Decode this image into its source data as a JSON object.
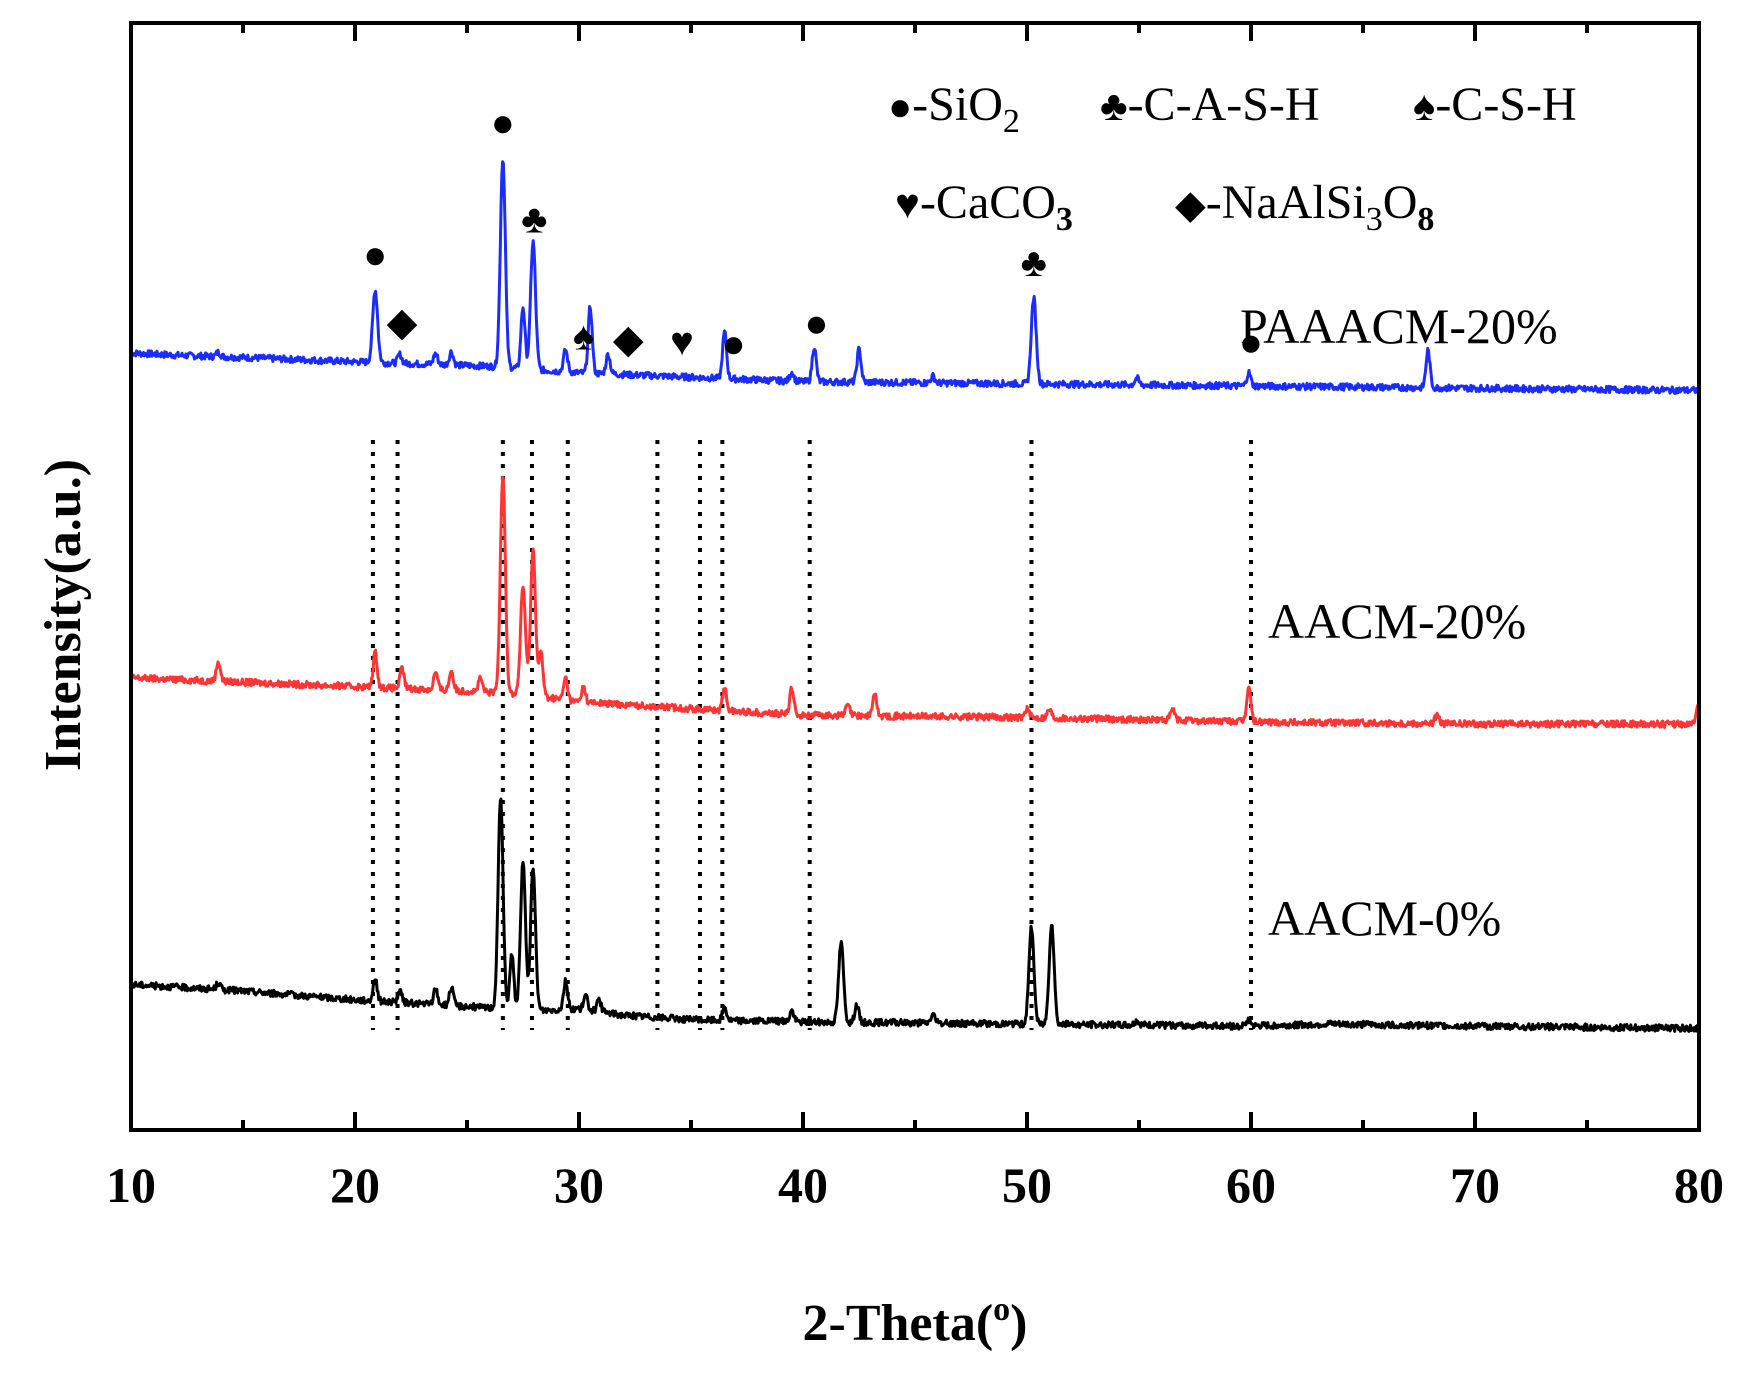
{
  "chart_data": {
    "type": "line",
    "title": "",
    "xlabel": "2-Theta(",
    "xlabel_sup": "o",
    "xlabel_end": ")",
    "ylabel": "Intensity(a.u.)",
    "xlim": [
      10,
      80
    ],
    "xticks": [
      10,
      20,
      30,
      40,
      50,
      60,
      70,
      80
    ],
    "xtick_labels": [
      "10",
      "20",
      "30",
      "40",
      "50",
      "60",
      "70",
      "80"
    ],
    "grid": false,
    "series": [
      {
        "name": "PAAACM-20%",
        "color": "#1a2cff",
        "baseline": [
          [
            10,
            0.35
          ],
          [
            12,
            0.34
          ],
          [
            15,
            0.33
          ],
          [
            20,
            0.31
          ],
          [
            26,
            0.29
          ],
          [
            30,
            0.26
          ],
          [
            35,
            0.24
          ],
          [
            40,
            0.22
          ],
          [
            50,
            0.21
          ],
          [
            60,
            0.2
          ],
          [
            70,
            0.19
          ],
          [
            80,
            0.18
          ]
        ],
        "peaks": [
          [
            13.9,
            0.02
          ],
          [
            20.9,
            0.33
          ],
          [
            22.0,
            0.04
          ],
          [
            23.6,
            0.05
          ],
          [
            24.3,
            0.06
          ],
          [
            26.6,
            0.95
          ],
          [
            27.5,
            0.28
          ],
          [
            27.95,
            0.58
          ],
          [
            29.4,
            0.1
          ],
          [
            30.5,
            0.3
          ],
          [
            31.3,
            0.09
          ],
          [
            36.5,
            0.21
          ],
          [
            39.5,
            0.04
          ],
          [
            40.5,
            0.16
          ],
          [
            42.5,
            0.15
          ],
          [
            45.8,
            0.03
          ],
          [
            50.3,
            0.39
          ],
          [
            54.9,
            0.03
          ],
          [
            59.9,
            0.06
          ],
          [
            67.9,
            0.17
          ]
        ]
      },
      {
        "name": "AACM-20%",
        "color": "#ff3535",
        "baseline": [
          [
            10,
            0.26
          ],
          [
            15,
            0.24
          ],
          [
            20,
            0.22
          ],
          [
            25,
            0.2
          ],
          [
            28,
            0.18
          ],
          [
            30,
            0.15
          ],
          [
            35,
            0.12
          ],
          [
            40,
            0.09
          ],
          [
            50,
            0.08
          ],
          [
            60,
            0.06
          ],
          [
            70,
            0.05
          ],
          [
            80,
            0.05
          ]
        ],
        "peaks": [
          [
            13.9,
            0.09
          ],
          [
            20.9,
            0.16
          ],
          [
            22.1,
            0.09
          ],
          [
            23.6,
            0.08
          ],
          [
            24.3,
            0.09
          ],
          [
            25.6,
            0.06
          ],
          [
            26.6,
            1.0
          ],
          [
            27.5,
            0.49
          ],
          [
            27.95,
            0.66
          ],
          [
            28.3,
            0.2
          ],
          [
            29.4,
            0.1
          ],
          [
            30.2,
            0.07
          ],
          [
            36.5,
            0.1
          ],
          [
            39.5,
            0.12
          ],
          [
            42.0,
            0.05
          ],
          [
            43.2,
            0.1
          ],
          [
            50.0,
            0.04
          ],
          [
            51.0,
            0.04
          ],
          [
            56.5,
            0.05
          ],
          [
            59.9,
            0.16
          ],
          [
            68.3,
            0.04
          ],
          [
            80.0,
            0.1
          ]
        ]
      },
      {
        "name": "AACM-0%",
        "color": "#000000",
        "baseline": [
          [
            10,
            0.23
          ],
          [
            15,
            0.2
          ],
          [
            20,
            0.16
          ],
          [
            25,
            0.13
          ],
          [
            28,
            0.11
          ],
          [
            30,
            0.12
          ],
          [
            32,
            0.09
          ],
          [
            35,
            0.07
          ],
          [
            40,
            0.06
          ],
          [
            50,
            0.05
          ],
          [
            60,
            0.04
          ],
          [
            63.5,
            0.05
          ],
          [
            70,
            0.04
          ],
          [
            80,
            0.03
          ]
        ],
        "peaks": [
          [
            13.9,
            0.03
          ],
          [
            20.9,
            0.1
          ],
          [
            22.0,
            0.05
          ],
          [
            23.6,
            0.07
          ],
          [
            24.3,
            0.08
          ],
          [
            26.5,
            0.96
          ],
          [
            27.0,
            0.25
          ],
          [
            27.5,
            0.67
          ],
          [
            27.95,
            0.64
          ],
          [
            29.4,
            0.13
          ],
          [
            30.3,
            0.06
          ],
          [
            30.9,
            0.05
          ],
          [
            36.5,
            0.06
          ],
          [
            39.5,
            0.05
          ],
          [
            41.7,
            0.36
          ],
          [
            42.4,
            0.08
          ],
          [
            45.8,
            0.04
          ],
          [
            50.2,
            0.44
          ],
          [
            51.1,
            0.46
          ],
          [
            54.9,
            0.02
          ],
          [
            59.9,
            0.03
          ]
        ]
      }
    ],
    "series_labels": [
      "PAAACM-20%",
      "AACM-20%",
      "AACM-0%"
    ],
    "reference_lines_2theta": [
      20.8,
      21.9,
      26.6,
      27.9,
      29.5,
      33.5,
      35.4,
      36.4,
      40.3,
      50.2,
      60.0
    ],
    "peak_markers": [
      {
        "symbol": "●",
        "phase": "SiO2",
        "two_theta": 20.9
      },
      {
        "symbol": "◆",
        "phase": "NaAlSi3O8",
        "two_theta": 22.1
      },
      {
        "symbol": "●",
        "phase": "SiO2",
        "two_theta": 26.6
      },
      {
        "symbol": "♣",
        "phase": "C-A-S-H",
        "two_theta": 28.0
      },
      {
        "symbol": "♠",
        "phase": "C-S-H",
        "two_theta": 30.2
      },
      {
        "symbol": "◆",
        "phase": "NaAlSi3O8",
        "two_theta": 32.2
      },
      {
        "symbol": "♥",
        "phase": "CaCO3",
        "two_theta": 34.6
      },
      {
        "symbol": "●",
        "phase": "SiO2",
        "two_theta": 36.9
      },
      {
        "symbol": "●",
        "phase": "SiO2",
        "two_theta": 40.6
      },
      {
        "symbol": "♣",
        "phase": "C-A-S-H",
        "two_theta": 50.3
      },
      {
        "symbol": "●",
        "phase": "SiO2",
        "two_theta": 60.0
      }
    ],
    "legend": [
      {
        "symbol": "●",
        "label": "-SiO",
        "sub": "2"
      },
      {
        "symbol": "♣",
        "label": "-C-A-S-H"
      },
      {
        "symbol": "♠",
        "label": "-C-S-H"
      },
      {
        "symbol": "♥",
        "label": "-CaCO",
        "sub": "3"
      },
      {
        "symbol": "◆",
        "label": "-NaAlSi",
        "sub": "3",
        "label2": "O",
        "sub2": "8"
      }
    ]
  }
}
